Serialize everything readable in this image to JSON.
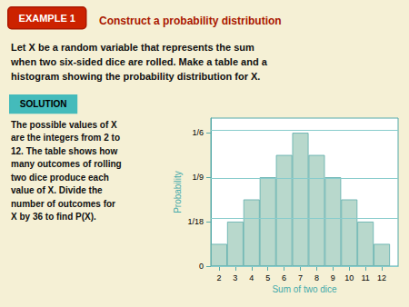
{
  "chart_data": {
    "type": "bar",
    "title": "Construct a probability distribution",
    "annotations": [
      "EXAMPLE 1",
      "Let X be a random variable that represents the sum",
      "when two six-sided dice are rolled. Make a table and a",
      "histogram showing the probability distribution for X.",
      "SOLUTION",
      "The possible values of X",
      "are the integers from 2 to",
      "12. The table shows how",
      "many outcomes of rolling",
      "two dice produce each",
      "value of X. Divide the",
      "number of outcomes for",
      "X by 36 to find P(X)."
    ],
    "x": [
      2,
      3,
      4,
      5,
      6,
      7,
      8,
      9,
      10,
      11,
      12
    ],
    "values": [
      0.027777777777777776,
      0.05555555555555555,
      0.08333333333333333,
      0.1111111111111111,
      0.1388888888888889,
      0.16666666666666666,
      0.1388888888888889,
      0.1111111111111111,
      0.08333333333333333,
      0.05555555555555555,
      0.027777777777777776
    ],
    "color": "#b8d8cc",
    "xlabel": "Sum of two dice",
    "ylabel": "Probability",
    "xlim": [
      1.5,
      13.0
    ],
    "xticks": [
      2,
      3,
      4,
      5,
      6,
      7,
      8,
      9,
      10,
      11,
      12
    ],
    "ylim": [
      0,
      0.185
    ],
    "yticks": [
      0,
      {
        "value": 0.05555555555555555,
        "label": "1/18"
      },
      {
        "value": 0.1111111111111111,
        "label": "1/9"
      },
      {
        "value": 0.16666666666666666,
        "label": "1/6"
      }
    ],
    "grid": true
  }
}
